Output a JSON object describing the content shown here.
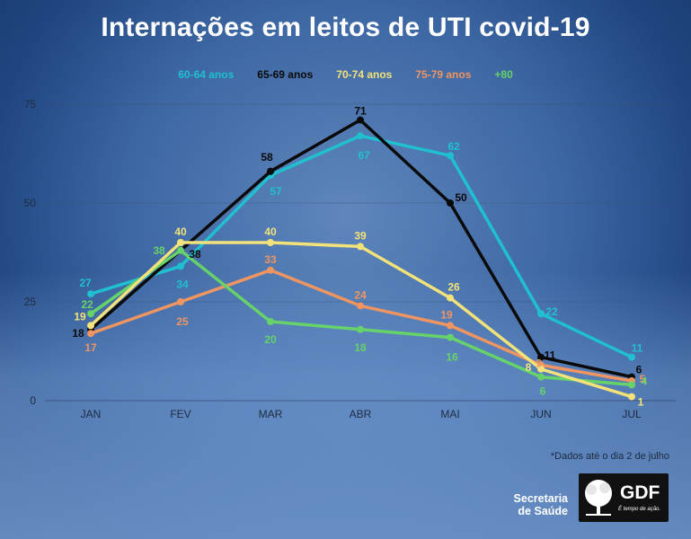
{
  "title": "Internações em leitos de UTI covid-19",
  "note": "*Dados até o dia 2 de julho",
  "logos": {
    "secretaria": "Secretaria de Saúde",
    "gdf": "GDF",
    "gdf_tagline": "É tempo de ação."
  },
  "chart_data": {
    "type": "line",
    "title": "Internações em leitos de UTI covid-19",
    "categories": [
      "JAN",
      "FEV",
      "MAR",
      "ABR",
      "MAI",
      "JUN",
      "JUL"
    ],
    "yticks": [
      "0",
      "25",
      "50",
      "75"
    ],
    "ylim": [
      0,
      75
    ],
    "grid": true,
    "legend_position": "top-center",
    "series": [
      {
        "name": "60-64 anos",
        "color": "#1fc0cf",
        "values": [
          27,
          34,
          57,
          67,
          62,
          22,
          11
        ],
        "labels": [
          "27",
          "34",
          "57",
          "67",
          "62",
          "22",
          "11"
        ]
      },
      {
        "name": "65-69 anos",
        "color": "#0a0a0a",
        "values": [
          18,
          38,
          58,
          71,
          50,
          11,
          6
        ],
        "labels": [
          "18",
          "38",
          "58",
          "71",
          "50",
          "11",
          "6"
        ]
      },
      {
        "name": "70-74 anos",
        "color": "#f2e27a",
        "values": [
          19,
          40,
          40,
          39,
          26,
          8,
          1
        ],
        "labels": [
          "19",
          "40",
          "40",
          "39",
          "26",
          "8",
          "1"
        ]
      },
      {
        "name": "75-79 anos",
        "color": "#ef9561",
        "values": [
          17,
          25,
          33,
          24,
          19,
          9,
          5
        ],
        "labels": [
          "17",
          "25",
          "33",
          "24",
          "19",
          "9",
          "5"
        ]
      },
      {
        "name": "+80",
        "color": "#66d26a",
        "values": [
          22,
          38,
          20,
          18,
          16,
          6,
          4
        ],
        "labels": [
          "22",
          "38",
          "20",
          "18",
          "16",
          "6",
          "4"
        ]
      }
    ]
  }
}
